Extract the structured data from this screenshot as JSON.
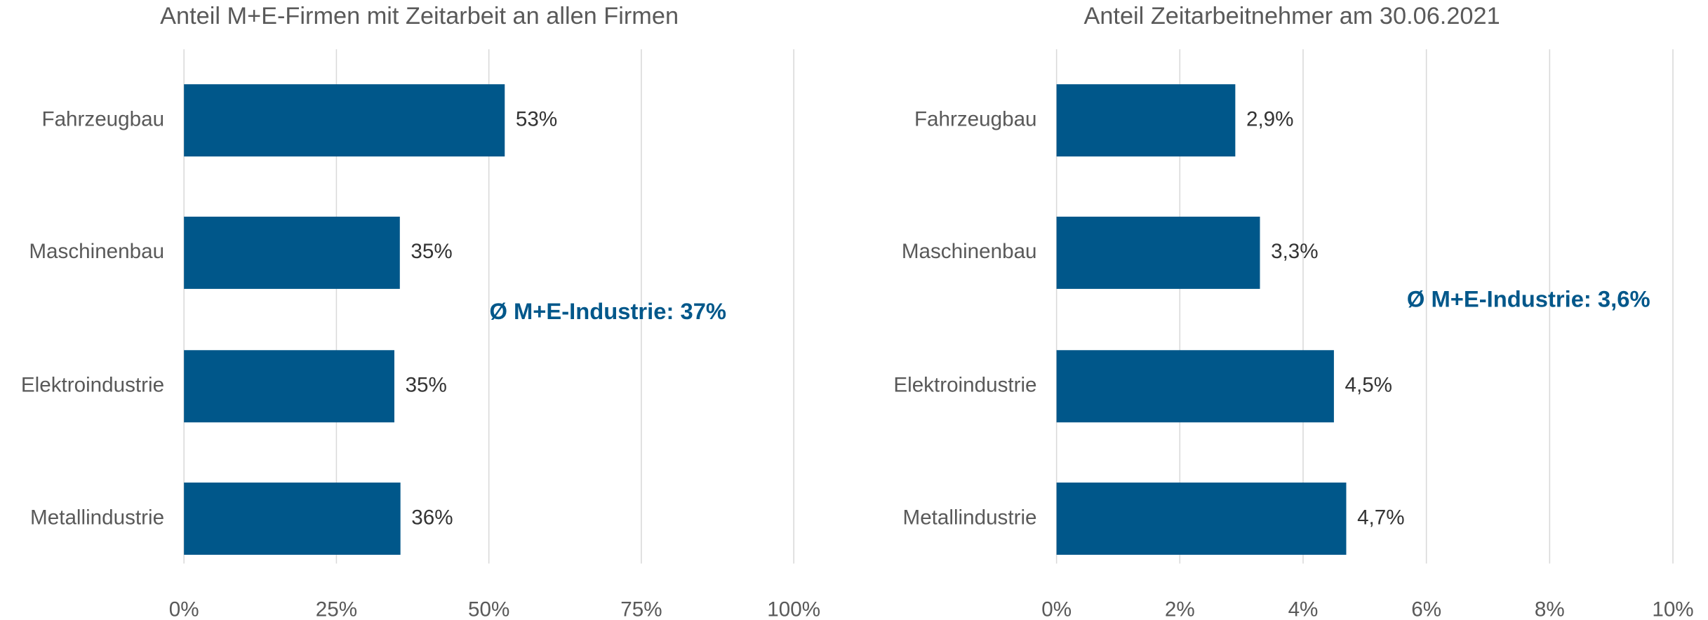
{
  "chart_data": [
    {
      "type": "bar",
      "orientation": "horizontal",
      "title": "Anteil M+E-Firmen mit Zeitarbeit an allen Firmen",
      "categories": [
        "Fahrzeugbau",
        "Maschinenbau",
        "Elektroindustrie",
        "Metallindustrie"
      ],
      "values": [
        52.6,
        35.4,
        34.5,
        35.5
      ],
      "value_labels": [
        "53%",
        "35%",
        "35%",
        "36%"
      ],
      "color": "#00578a",
      "xlim": [
        0,
        100
      ],
      "xticks": [
        {
          "value": 0,
          "label": "0%"
        },
        {
          "value": 25,
          "label": "25%"
        },
        {
          "value": 50,
          "label": "50%"
        },
        {
          "value": 75,
          "label": "75%"
        },
        {
          "value": 100,
          "label": "100%"
        }
      ],
      "grid": true,
      "annotation": "Ø M+E-Industrie: 37%"
    },
    {
      "type": "bar",
      "orientation": "horizontal",
      "title": "Anteil Zeitarbeitnehmer am 30.06.2021",
      "categories": [
        "Fahrzeugbau",
        "Maschinenbau",
        "Elektroindustrie",
        "Metallindustrie"
      ],
      "values": [
        2.9,
        3.3,
        4.5,
        4.7
      ],
      "value_labels": [
        "2,9%",
        "3,3%",
        "4,5%",
        "4,7%"
      ],
      "color": "#00578a",
      "xlim": [
        0,
        10
      ],
      "xticks": [
        {
          "value": 0,
          "label": "0%"
        },
        {
          "value": 2,
          "label": "2%"
        },
        {
          "value": 4,
          "label": "4%"
        },
        {
          "value": 6,
          "label": "6%"
        },
        {
          "value": 8,
          "label": "8%"
        },
        {
          "value": 10,
          "label": "10%"
        }
      ],
      "grid": true,
      "annotation": "Ø M+E-Industrie: 3,6%"
    }
  ]
}
